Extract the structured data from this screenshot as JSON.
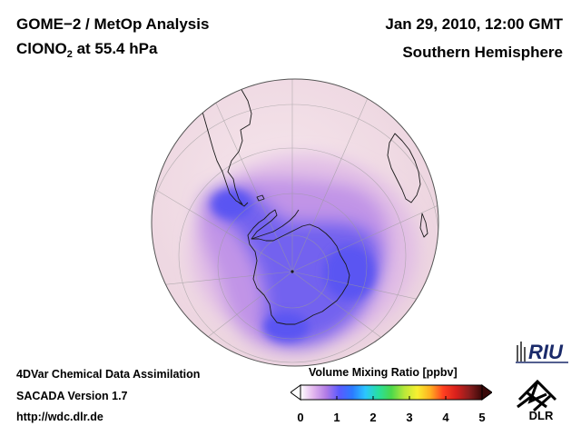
{
  "header": {
    "title_line1": "GOME−2 / MetOp Analysis",
    "species_main": "ClONO",
    "species_sub": "2",
    "species_rest": " at 55.4 hPa",
    "datetime": "Jan 29, 2010, 12:00 GMT",
    "region": "Southern Hemisphere"
  },
  "footer": {
    "line1": "4DVar Chemical Data Assimilation",
    "line2": "SACADA Version 1.7",
    "line3": "http://wdc.dlr.de"
  },
  "colorbar": {
    "title": "Volume Mixing Ratio [ppbv]",
    "ticks": [
      "0",
      "1",
      "2",
      "3",
      "4",
      "5"
    ],
    "min": 0,
    "max": 5,
    "colors": [
      "#ffffff",
      "#e2b6ee",
      "#b07ae6",
      "#5a5aff",
      "#2b7bff",
      "#2bc6ff",
      "#27e0a0",
      "#4bd84b",
      "#b8e83a",
      "#f8f030",
      "#ffb020",
      "#ff4020",
      "#d8201c",
      "#8b1e1e",
      "#3a0808"
    ]
  },
  "logos": {
    "riu_text": "RIU",
    "dlr_text": "DLR"
  },
  "colors": {
    "globe_background": "#f2dfe6",
    "low_value": "#5f5af0",
    "mid_value": "#b98ae8",
    "coastline": "#1a1a1a",
    "graticule": "#9a9a9a"
  }
}
